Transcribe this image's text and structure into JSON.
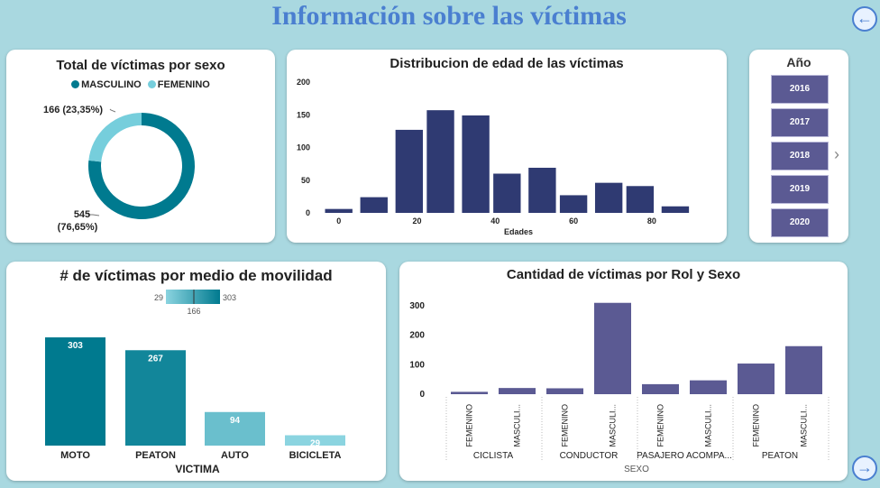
{
  "header": {
    "title": "Información sobre las víctimas"
  },
  "nav": {
    "back_icon": "←",
    "forward_icon": "→"
  },
  "colors": {
    "masculino": "#007a8f",
    "femenino": "#76cedc",
    "navy": "#2f3a72",
    "purple": "#5b5a93"
  },
  "slicer": {
    "title": "Año",
    "items": [
      "2016",
      "2017",
      "2018",
      "2019",
      "2020"
    ],
    "more_icon": "›"
  },
  "chart_data": [
    {
      "type": "pie",
      "title": "Total de víctimas por sexo",
      "legend": [
        "MASCULINO",
        "FEMENINO"
      ],
      "categories": [
        "MASCULINO",
        "FEMENINO"
      ],
      "values": [
        545,
        166
      ],
      "labels": [
        {
          "value": "545",
          "pct": "(76,65%)"
        },
        {
          "value": "166 (23,35%)"
        }
      ]
    },
    {
      "type": "bar",
      "title": "Distribucion de edad de las víctimas",
      "xlabel": "Edades",
      "x_ticks": [
        "0",
        "20",
        "40",
        "60",
        "80"
      ],
      "y_ticks": [
        "0",
        "50",
        "100",
        "150",
        "200"
      ],
      "ylim": [
        0,
        200
      ],
      "xlim": [
        -5,
        95
      ],
      "bins": [
        {
          "x": 0,
          "value": 6
        },
        {
          "x": 9,
          "value": 24
        },
        {
          "x": 18,
          "value": 127
        },
        {
          "x": 26,
          "value": 157
        },
        {
          "x": 35,
          "value": 149
        },
        {
          "x": 43,
          "value": 60
        },
        {
          "x": 52,
          "value": 69
        },
        {
          "x": 60,
          "value": 27
        },
        {
          "x": 69,
          "value": 46
        },
        {
          "x": 77,
          "value": 41
        },
        {
          "x": 86,
          "value": 10
        }
      ]
    },
    {
      "type": "bar",
      "title": "# de víctimas por medio de movilidad",
      "xlabel": "VICTIMA",
      "categories": [
        "MOTO",
        "PEATON",
        "AUTO",
        "BICICLETA"
      ],
      "values": [
        303,
        267,
        94,
        29
      ],
      "data_labels": [
        "303",
        "267",
        "94",
        "29"
      ],
      "ylim": [
        0,
        303
      ],
      "color_scale": {
        "min": "29",
        "max": "303",
        "mid": "166"
      }
    },
    {
      "type": "bar",
      "title": "Cantidad de víctimas por Rol y Sexo",
      "xlabel": "SEXO",
      "y_ticks": [
        "0",
        "100",
        "200",
        "300"
      ],
      "ylim": [
        0,
        330
      ],
      "groups": [
        {
          "name": "CICLISTA",
          "items": [
            {
              "label": "FEMENINO",
              "value": 8
            },
            {
              "label": "MASCULI...",
              "value": 21
            }
          ]
        },
        {
          "name": "CONDUCTOR",
          "items": [
            {
              "label": "FEMENINO",
              "value": 20
            },
            {
              "label": "MASCULI...",
              "value": 310
            }
          ]
        },
        {
          "name": "PASAJERO ACOMPA...",
          "items": [
            {
              "label": "FEMENINO",
              "value": 34
            },
            {
              "label": "MASCULI...",
              "value": 47
            }
          ]
        },
        {
          "name": "PEATON",
          "items": [
            {
              "label": "FEMENINO",
              "value": 104
            },
            {
              "label": "MASCULI...",
              "value": 163
            }
          ]
        }
      ]
    }
  ]
}
